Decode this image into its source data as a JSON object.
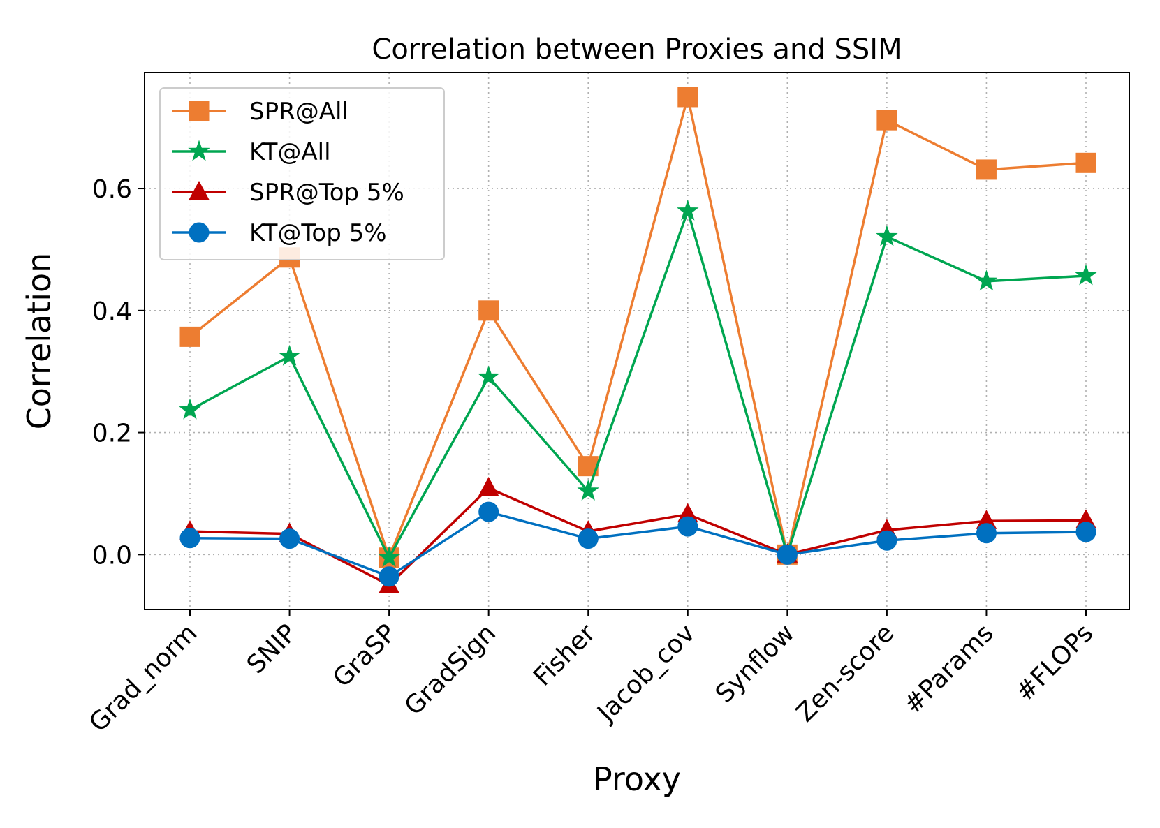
{
  "chart_data": {
    "type": "line",
    "title": "Correlation between Proxies and SSIM",
    "xlabel": "Proxy",
    "ylabel": "Correlation",
    "categories": [
      "Grad_norm",
      "SNIP",
      "GraSP",
      "GradSign",
      "Fisher",
      "Jacob_cov",
      "Synflow",
      "Zen-score",
      "#Params",
      "#FLOPs"
    ],
    "ylim": [
      -0.09,
      0.79
    ],
    "yticks": [
      "0.0",
      "0.2",
      "0.4",
      "0.6"
    ],
    "grid": true,
    "legend_position": "top-left",
    "series": [
      {
        "name": "SPR@All",
        "color": "#ED7D31",
        "marker": "square",
        "values": [
          0.357,
          0.487,
          -0.005,
          0.4,
          0.145,
          0.75,
          0.0,
          0.712,
          0.631,
          0.642
        ]
      },
      {
        "name": "KT@All",
        "color": "#00A651",
        "marker": "star",
        "values": [
          0.237,
          0.325,
          -0.005,
          0.291,
          0.104,
          0.563,
          0.0,
          0.521,
          0.448,
          0.457
        ]
      },
      {
        "name": "SPR@Top 5%",
        "color": "#C00000",
        "marker": "triangle",
        "values": [
          0.038,
          0.034,
          -0.05,
          0.109,
          0.038,
          0.066,
          0.0,
          0.04,
          0.055,
          0.056
        ]
      },
      {
        "name": "KT@Top 5%",
        "color": "#0070C0",
        "marker": "circle",
        "values": [
          0.027,
          0.026,
          -0.036,
          0.07,
          0.026,
          0.046,
          0.0,
          0.023,
          0.035,
          0.037
        ]
      }
    ]
  }
}
